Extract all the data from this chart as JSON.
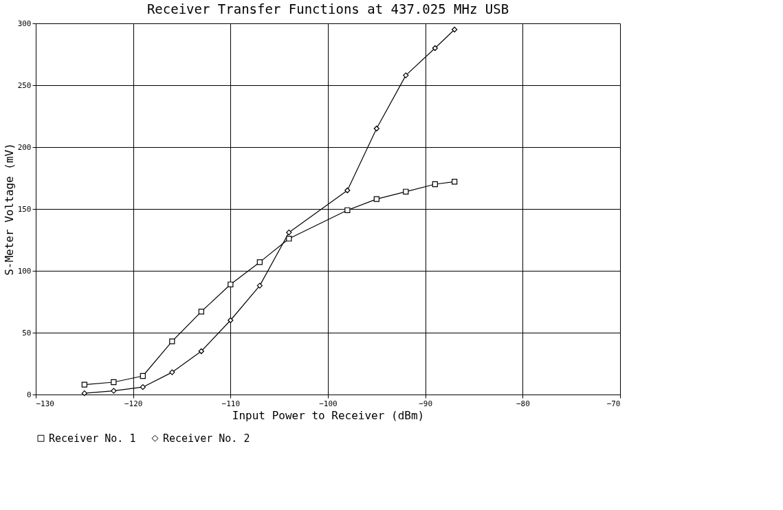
{
  "chart_data": {
    "type": "line",
    "title": "Receiver Transfer Functions at 437.025 MHz USB",
    "xlabel": "Input Power to Receiver (dBm)",
    "ylabel": "S-Meter Voltage (mV)",
    "x": [
      -125,
      -122,
      -119,
      -116,
      -113,
      -110,
      -107,
      -104,
      -98,
      -95,
      -92,
      -89,
      -87
    ],
    "series": [
      {
        "name": "Receiver No. 1",
        "color": "#000000",
        "marker": "square",
        "values": [
          8,
          10,
          15,
          43,
          67,
          89,
          107,
          126,
          149,
          158,
          164,
          170,
          172
        ]
      },
      {
        "name": "Receiver No. 2",
        "color": "#000000",
        "marker": "diamond",
        "values": [
          1,
          3,
          6,
          18,
          35,
          60,
          88,
          131,
          165,
          215,
          258,
          280,
          295
        ]
      }
    ],
    "xlim": [
      -130,
      -70
    ],
    "xticks": [
      -130,
      -120,
      -110,
      -100,
      -90,
      -80,
      -70
    ],
    "ylim": [
      0,
      300
    ],
    "yticks": [
      0,
      50,
      100,
      150,
      200,
      250,
      300
    ],
    "grid": true,
    "legend": "bottom",
    "line_style": "solid"
  }
}
